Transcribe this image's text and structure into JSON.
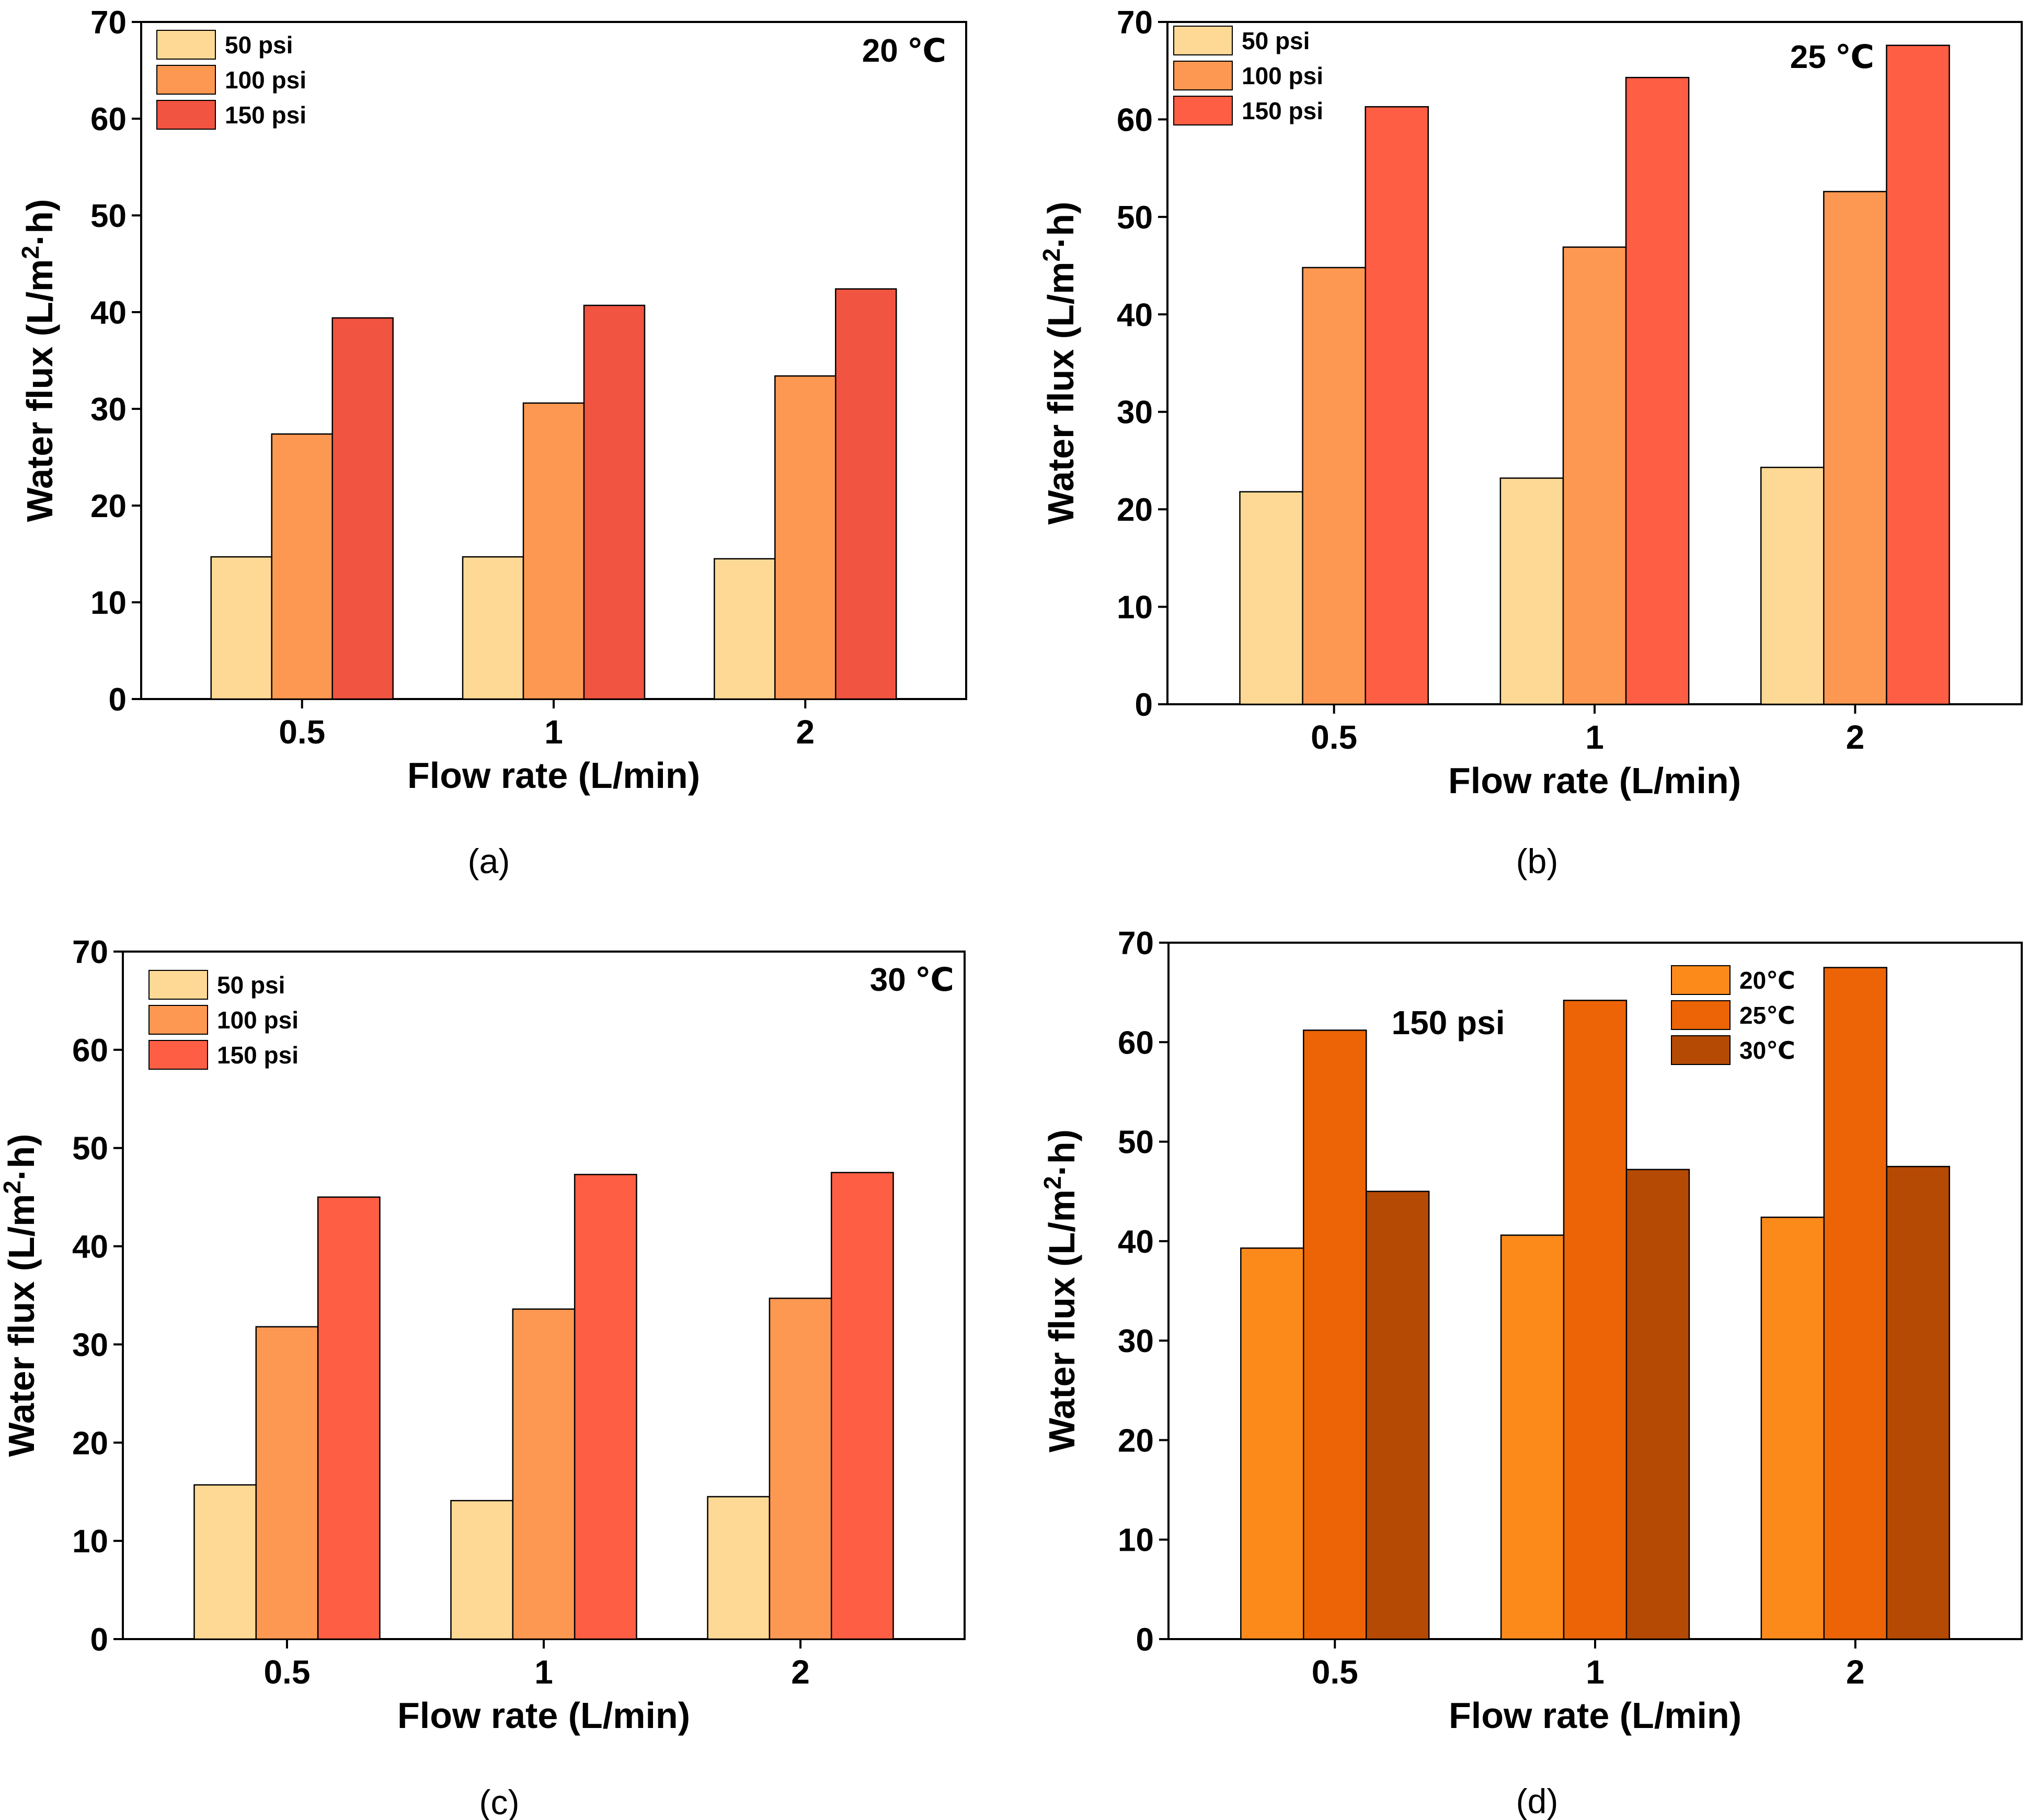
{
  "chart_data": [
    {
      "id": "a",
      "type": "bar",
      "caption": "(a)",
      "annotation": "20 ℃",
      "xlabel": "Flow rate (L/min)",
      "ylabel_main": "Water flux (L/m",
      "ylabel_sup": "2",
      "ylabel_tail": "·h)",
      "ylim": [
        0,
        70
      ],
      "yticks": [
        "0",
        "10",
        "20",
        "30",
        "40",
        "50",
        "60",
        "70"
      ],
      "categories": [
        "0.5",
        "1",
        "2"
      ],
      "legend_position": "top-left",
      "series": [
        {
          "name": "50 psi",
          "color": "#FDD995",
          "values": [
            14.7,
            14.7,
            14.5
          ]
        },
        {
          "name": "100 psi",
          "color": "#FD9852",
          "values": [
            27.4,
            30.6,
            33.4
          ]
        },
        {
          "name": "150 psi",
          "color": "#F15440",
          "values": [
            39.4,
            40.7,
            42.4
          ]
        }
      ]
    },
    {
      "id": "b",
      "type": "bar",
      "caption": "(b)",
      "annotation": "25 ℃",
      "xlabel": "Flow rate (L/min)",
      "ylabel_main": "Water flux (L/m",
      "ylabel_sup": "2",
      "ylabel_tail": "·h)",
      "ylim": [
        0,
        70
      ],
      "yticks": [
        "0",
        "10",
        "20",
        "30",
        "40",
        "50",
        "60",
        "70"
      ],
      "categories": [
        "0.5",
        "1",
        "2"
      ],
      "legend_position": "top-left",
      "series": [
        {
          "name": "50 psi",
          "color": "#FDD995",
          "values": [
            21.8,
            23.2,
            24.3
          ]
        },
        {
          "name": "100 psi",
          "color": "#FD9852",
          "values": [
            44.8,
            46.9,
            52.6
          ]
        },
        {
          "name": "150 psi",
          "color": "#FE5E44",
          "values": [
            61.3,
            64.3,
            67.6
          ]
        }
      ]
    },
    {
      "id": "c",
      "type": "bar",
      "caption": "(c)",
      "annotation": "30 ℃",
      "xlabel": "Flow rate (L/min)",
      "ylabel_main": "Water flux (L/m",
      "ylabel_sup": "2",
      "ylabel_tail": "·h)",
      "ylim": [
        0,
        70
      ],
      "yticks": [
        "0",
        "10",
        "20",
        "30",
        "40",
        "50",
        "60",
        "70"
      ],
      "categories": [
        "0.5",
        "1",
        "2"
      ],
      "legend_position": "top-left",
      "series": [
        {
          "name": "50 psi",
          "color": "#FDD995",
          "values": [
            15.7,
            14.1,
            14.5
          ]
        },
        {
          "name": "100 psi",
          "color": "#FD9852",
          "values": [
            31.8,
            33.6,
            34.7
          ]
        },
        {
          "name": "150 psi",
          "color": "#FE5E44",
          "values": [
            45.0,
            47.3,
            47.5
          ]
        }
      ]
    },
    {
      "id": "d",
      "type": "bar",
      "caption": "(d)",
      "annotation": "150 psi",
      "xlabel": "Flow rate (L/min)",
      "ylabel_main": "Water flux (L/m",
      "ylabel_sup": "2",
      "ylabel_tail": "·h)",
      "ylim": [
        0,
        70
      ],
      "yticks": [
        "0",
        "10",
        "20",
        "30",
        "40",
        "50",
        "60",
        "70"
      ],
      "categories": [
        "0.5",
        "1",
        "2"
      ],
      "legend_position": "top-right",
      "series": [
        {
          "name": "20℃",
          "color": "#FC8A1B",
          "values": [
            39.3,
            40.6,
            42.4
          ]
        },
        {
          "name": "25℃",
          "color": "#EC6406",
          "values": [
            61.2,
            64.2,
            67.5
          ]
        },
        {
          "name": "30℃",
          "color": "#B44A03",
          "values": [
            45.0,
            47.2,
            47.5
          ]
        }
      ]
    }
  ]
}
